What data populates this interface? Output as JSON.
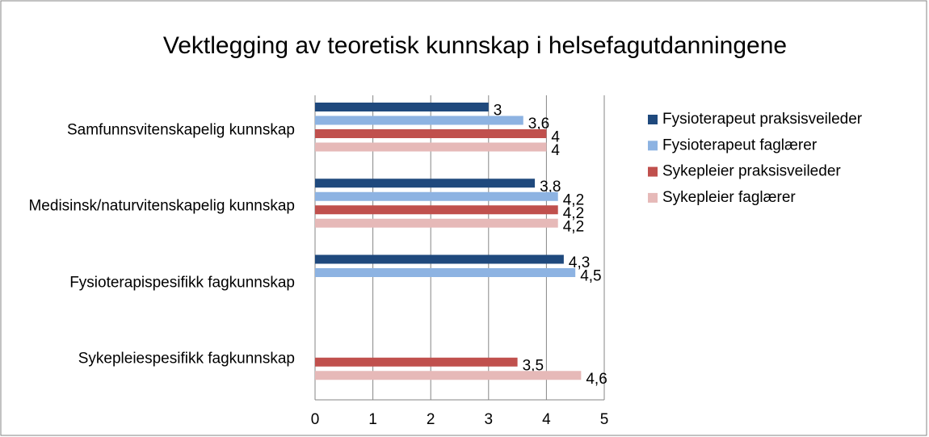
{
  "chart_data": {
    "type": "bar",
    "orientation": "horizontal",
    "title": "Vektlegging av teoretisk kunnskap i helsefagutdanningene",
    "categories": [
      "Samfunnsvitenskapelig kunnskap",
      "Medisinsk/naturvitenskapelig kunnskap",
      "Fysioterapispesifikk fagkunnskap",
      "Sykepleiespesifikk fagkunnskap"
    ],
    "series": [
      {
        "name": "Fysioterapeut praksisveileder",
        "color": "#1f497d",
        "values": [
          3,
          3.8,
          4.3,
          null
        ],
        "value_labels": [
          "3",
          "3,8",
          "4,3",
          null
        ]
      },
      {
        "name": "Fysioterapeut faglærer",
        "color": "#8db3e2",
        "values": [
          3.6,
          4.2,
          4.5,
          null
        ],
        "value_labels": [
          "3,6",
          "4,2",
          "4,5",
          null
        ]
      },
      {
        "name": "Sykepleier praksisveileder",
        "color": "#c0504d",
        "values": [
          4,
          4.2,
          null,
          3.5
        ],
        "value_labels": [
          "4",
          "4,2",
          null,
          "3,5"
        ]
      },
      {
        "name": "Sykepleier faglærer",
        "color": "#e6b9b8",
        "values": [
          4,
          4.2,
          null,
          4.6
        ],
        "value_labels": [
          "4",
          "4,2",
          null,
          "4,6"
        ]
      }
    ],
    "xlim": [
      0,
      5
    ],
    "xticks": [
      0,
      1,
      2,
      3,
      4,
      5
    ],
    "grid": true,
    "legend": "right"
  }
}
